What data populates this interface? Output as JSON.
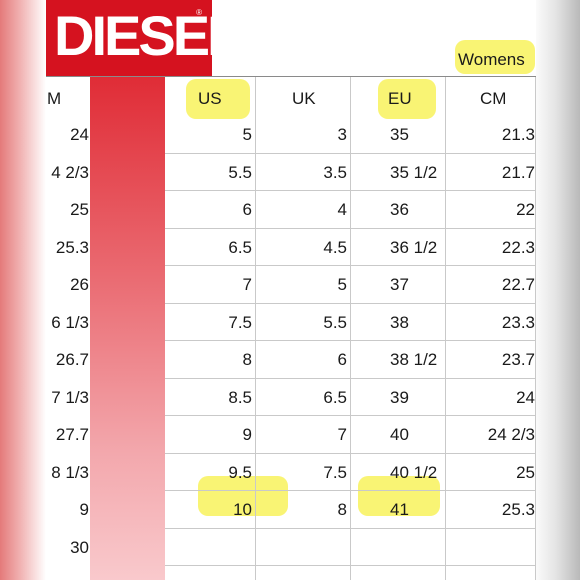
{
  "brand": {
    "name": "DIESEL",
    "mark": "®"
  },
  "section_label": "Womens",
  "headers": [
    "M",
    "US",
    "UK",
    "EU",
    "CM"
  ],
  "rows": [
    [
      "24",
      "5",
      "3",
      "35",
      "21.3"
    ],
    [
      "4 2/3",
      "5.5",
      "3.5",
      "35 1/2",
      "21.7"
    ],
    [
      "25",
      "6",
      "4",
      "36",
      "22"
    ],
    [
      "25.3",
      "6.5",
      "4.5",
      "36 1/2",
      "22.3"
    ],
    [
      "26",
      "7",
      "5",
      "37",
      "22.7"
    ],
    [
      "6 1/3",
      "7.5",
      "5.5",
      "38",
      "23.3"
    ],
    [
      "26.7",
      "8",
      "6",
      "38 1/2",
      "23.7"
    ],
    [
      "7 1/3",
      "8.5",
      "6.5",
      "39",
      "24"
    ],
    [
      "27.7",
      "9",
      "7",
      "40",
      "24 2/3"
    ],
    [
      "8 1/3",
      "9.5",
      "7.5",
      "40 1/2",
      "25"
    ],
    [
      "9",
      "10",
      "8",
      "41",
      "25.3"
    ],
    [
      "30",
      "",
      "",
      "",
      ""
    ]
  ],
  "colors": {
    "brand_red": "#d5121f",
    "highlight": "#f8f365"
  }
}
